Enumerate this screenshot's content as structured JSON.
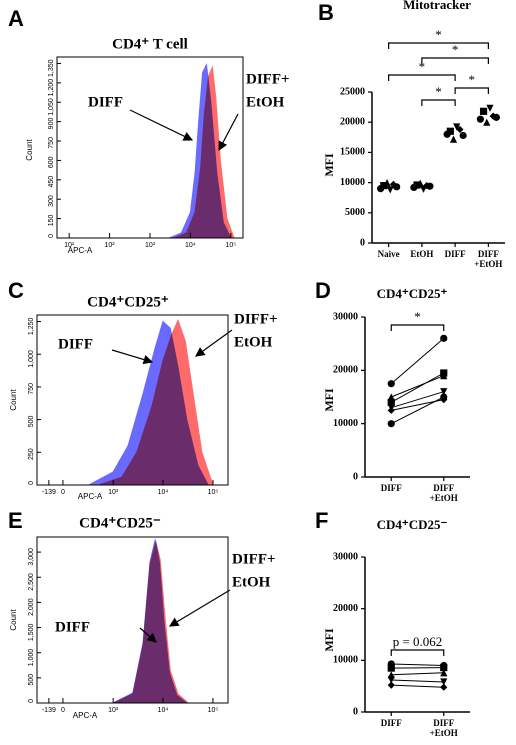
{
  "chart_data": [
    {
      "type": "histogram",
      "panel": "A",
      "title": "CD4⁺ T cell",
      "xlabel": "APC-A",
      "ylabel": "Count",
      "xscale": "log",
      "xlim": [
        5,
        200000
      ],
      "xticks": [
        {
          "value": 10,
          "label": "10¹"
        },
        {
          "value": 100,
          "label": "10²"
        },
        {
          "value": 1000,
          "label": "10³"
        },
        {
          "value": 10000,
          "label": "10⁴"
        },
        {
          "value": 100000,
          "label": "10⁵"
        }
      ],
      "ylim": [
        0,
        1400
      ],
      "yticks": [
        0,
        150,
        300,
        450,
        600,
        750,
        900,
        {
          "value": 1050,
          "label": "1,050"
        },
        {
          "value": 1200,
          "label": "1,200"
        },
        {
          "value": 1350,
          "label": "1,350"
        }
      ],
      "series": [
        {
          "name": "DIFF",
          "color": "#6a6aff",
          "x": [
            3000,
            6000,
            10000,
            13000,
            16000,
            20000,
            25000,
            32000,
            45000,
            65000,
            100000
          ],
          "values": [
            0,
            40,
            200,
            500,
            900,
            1280,
            1340,
            1050,
            500,
            120,
            0
          ]
        },
        {
          "name": "DIFF+EtOH",
          "color": "#ff6a6a",
          "x": [
            4000,
            8000,
            13000,
            18000,
            22000,
            28000,
            35000,
            42000,
            55000,
            80000,
            120000
          ],
          "values": [
            0,
            40,
            200,
            550,
            950,
            1250,
            1320,
            1100,
            600,
            150,
            0
          ]
        }
      ],
      "annotations": [
        "DIFF",
        "DIFF+",
        "EtOH"
      ]
    },
    {
      "type": "dotplot",
      "panel": "B",
      "title": "Mitotracker",
      "ylabel": "MFI",
      "categories": [
        "Naive",
        "EtOH",
        "DIFF",
        "DIFF\n+EtOH"
      ],
      "values": [
        [
          9000,
          9500,
          10000,
          8800,
          9700,
          9300
        ],
        [
          9200,
          9600,
          9900,
          8900,
          9500,
          9400
        ],
        [
          18000,
          18500,
          17200,
          19200,
          18800,
          17800
        ],
        [
          20500,
          21800,
          20000,
          22300,
          21000,
          20800
        ]
      ],
      "color": "#000000",
      "ylim": [
        0,
        25000
      ],
      "yticks": [
        0,
        5000,
        10000,
        15000,
        20000,
        25000
      ],
      "annotations": [
        "*",
        "*",
        "*",
        "*",
        "*"
      ]
    },
    {
      "type": "histogram",
      "panel": "C",
      "title": "CD4⁺CD25⁺",
      "xlabel": "APC-A",
      "ylabel": "Count",
      "xscale": "biex",
      "xlim": [
        -300,
        200000
      ],
      "xticks": [
        -139,
        0,
        {
          "value": 1000,
          "label": "10³"
        },
        {
          "value": 10000,
          "label": "10⁴"
        },
        {
          "value": 100000,
          "label": "10⁵"
        }
      ],
      "ylim": [
        0,
        1300
      ],
      "yticks": [
        0,
        250,
        500,
        750,
        {
          "value": 1000,
          "label": "1,000"
        },
        {
          "value": 1250,
          "label": "1,250"
        }
      ],
      "series": [
        {
          "name": "DIFF",
          "color": "#6a6aff",
          "x": [
            300,
            1000,
            2000,
            4000,
            7000,
            10000,
            14000,
            20000,
            30000,
            50000,
            80000
          ],
          "values": [
            0,
            100,
            300,
            700,
            1050,
            1250,
            1200,
            900,
            500,
            150,
            0
          ]
        },
        {
          "name": "DIFF+EtOH",
          "color": "#ff6a6a",
          "x": [
            500,
            1500,
            3000,
            6000,
            10000,
            15000,
            20000,
            28000,
            40000,
            60000,
            100000
          ],
          "values": [
            0,
            60,
            250,
            600,
            950,
            1150,
            1260,
            1100,
            700,
            250,
            0
          ]
        }
      ],
      "annotations": [
        "DIFF",
        "DIFF+",
        "EtOH"
      ]
    },
    {
      "type": "paired",
      "panel": "D",
      "title": "CD4⁺CD25⁺",
      "ylabel": "MFI",
      "categories": [
        "DIFF",
        "DIFF\n+EtOH"
      ],
      "values": [
        [
          10000,
          14000,
          15000,
          13000,
          12500,
          17500
        ],
        [
          15000,
          19500,
          19000,
          16000,
          14500,
          26000
        ]
      ],
      "color": "#000000",
      "ylim": [
        0,
        30000
      ],
      "yticks": [
        0,
        10000,
        20000,
        30000
      ],
      "annotations": [
        "*"
      ]
    },
    {
      "type": "histogram",
      "panel": "E",
      "title": "CD4⁺CD25⁻",
      "xlabel": "APC-A",
      "ylabel": "Count",
      "xscale": "biex",
      "xlim": [
        -300,
        200000
      ],
      "xticks": [
        -139,
        0,
        {
          "value": 1000,
          "label": "10³"
        },
        {
          "value": 10000,
          "label": "10⁴"
        },
        {
          "value": 100000,
          "label": "10⁵"
        }
      ],
      "ylim": [
        0,
        3300
      ],
      "yticks": [
        0,
        500,
        {
          "value": 1000,
          "label": "1,000"
        },
        {
          "value": 1500,
          "label": "1,500"
        },
        {
          "value": 2000,
          "label": "2,000"
        },
        {
          "value": 2500,
          "label": "2,500"
        },
        {
          "value": 3000,
          "label": "3,000"
        }
      ],
      "series": [
        {
          "name": "DIFF",
          "color": "#6a6aff",
          "x": [
            1000,
            2500,
            4000,
            5500,
            7000,
            8500,
            10500,
            13500,
            19000,
            30000
          ],
          "values": [
            0,
            200,
            1200,
            2800,
            3250,
            2800,
            1600,
            600,
            150,
            0
          ]
        },
        {
          "name": "DIFF+EtOH",
          "color": "#ff6a6a",
          "x": [
            1000,
            2500,
            4000,
            5500,
            7200,
            8800,
            11000,
            14000,
            20000,
            32000
          ],
          "values": [
            0,
            180,
            1150,
            2750,
            3200,
            2850,
            1700,
            650,
            180,
            0
          ]
        }
      ],
      "annotations": [
        "DIFF",
        "DIFF+",
        "EtOH"
      ]
    },
    {
      "type": "paired",
      "panel": "F",
      "title": "CD4⁺CD25⁻",
      "ylabel": "MFI",
      "categories": [
        "DIFF",
        "DIFF\n+EtOH"
      ],
      "values": [
        [
          9300,
          8500,
          7200,
          6200,
          5200
        ],
        [
          9000,
          8600,
          7600,
          5800,
          4800
        ]
      ],
      "color": "#000000",
      "ylim": [
        0,
        30000
      ],
      "yticks": [
        0,
        10000,
        20000,
        30000
      ],
      "annotations": [
        "p = 0.062"
      ]
    }
  ]
}
